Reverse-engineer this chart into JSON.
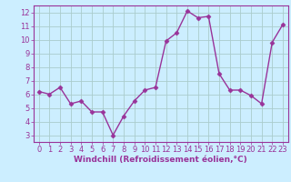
{
  "x": [
    0,
    1,
    2,
    3,
    4,
    5,
    6,
    7,
    8,
    9,
    10,
    11,
    12,
    13,
    14,
    15,
    16,
    17,
    18,
    19,
    20,
    21,
    22,
    23
  ],
  "y": [
    6.2,
    6.0,
    6.5,
    5.3,
    5.5,
    4.7,
    4.7,
    3.0,
    4.4,
    5.5,
    6.3,
    6.5,
    9.9,
    10.5,
    12.1,
    11.6,
    11.7,
    7.5,
    6.3,
    6.3,
    5.9,
    5.3,
    9.8,
    11.1
  ],
  "line_color": "#993399",
  "marker": "D",
  "markersize": 2.5,
  "linewidth": 1.0,
  "bg_color": "#cceeff",
  "grid_color": "#aacccc",
  "axis_color": "#993399",
  "xlabel": "Windchill (Refroidissement éolien,°C)",
  "xlim": [
    -0.5,
    23.5
  ],
  "ylim": [
    2.5,
    12.5
  ],
  "yticks": [
    3,
    4,
    5,
    6,
    7,
    8,
    9,
    10,
    11,
    12
  ],
  "xticks": [
    0,
    1,
    2,
    3,
    4,
    5,
    6,
    7,
    8,
    9,
    10,
    11,
    12,
    13,
    14,
    15,
    16,
    17,
    18,
    19,
    20,
    21,
    22,
    23
  ],
  "xlabel_fontsize": 6.5,
  "tick_fontsize": 6.0,
  "tick_color": "#993399"
}
